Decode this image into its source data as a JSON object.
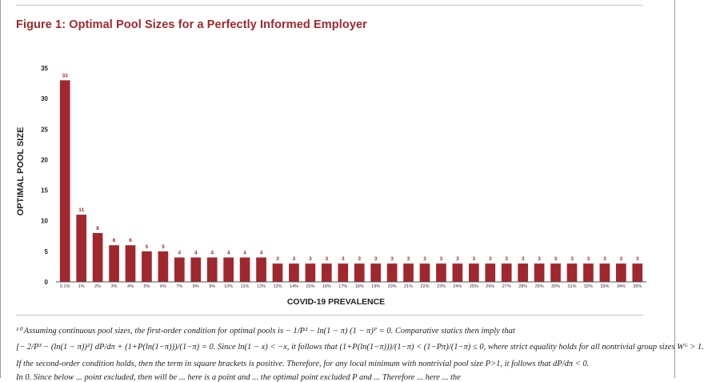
{
  "title": "Figure 1: Optimal Pool Sizes for a Perfectly Informed Employer",
  "colors": {
    "bar": "#a0282d",
    "title": "#a0282d",
    "text": "#222222"
  },
  "footnote": {
    "line1": "¹⁰ Assuming continuous pool sizes, the first-order condition for optimal pools is − 1/P² − ln(1 − π) (1 − π)ᴾ = 0. Comparative statics then imply that",
    "line2": "[− 2/P³ − (ln(1 − π))²] dP/dπ + (1+P(ln(1−π)))/(1−π) = 0. Since ln(1 − x) < −x, it follows that (1+P(ln(1−π)))/(1−π) < (1−Pπ)/(1−π) ≤ 0, where strict equality holds for all nontrivial group sizes Wᴳ > 1.",
    "line3": "If the second-order condition holds, then the term in square brackets is positive. Therefore, for any local minimum with nontrivial pool size P>1, it follows that dP/dπ < 0.",
    "line4": "In 0. Since below ... point excluded, then will be ... here is a point and ... the optimal point excluded P and ... Therefore ... here ... the"
  },
  "chart_data": {
    "type": "bar",
    "title": "Figure 1: Optimal Pool Sizes for a Perfectly Informed Employer",
    "xlabel": "COVID-19 PREVALENCE",
    "ylabel": "OPTIMAL POOL SIZE",
    "ylim": [
      0,
      35
    ],
    "yticks": [
      0,
      5,
      10,
      15,
      20,
      25,
      30,
      35
    ],
    "grid": false,
    "legend": "none",
    "categories": [
      "0.1%",
      "1%",
      "2%",
      "3%",
      "4%",
      "5%",
      "6%",
      "7%",
      "8%",
      "9%",
      "10%",
      "11%",
      "12%",
      "13%",
      "14%",
      "15%",
      "16%",
      "17%",
      "18%",
      "19%",
      "20%",
      "21%",
      "22%",
      "23%",
      "24%",
      "25%",
      "26%",
      "27%",
      "28%",
      "29%",
      "30%",
      "31%",
      "32%",
      "33%",
      "34%",
      "35%"
    ],
    "values": [
      33,
      11,
      8,
      6,
      6,
      5,
      5,
      4,
      4,
      4,
      4,
      4,
      4,
      3,
      3,
      3,
      3,
      3,
      3,
      3,
      3,
      3,
      3,
      3,
      3,
      3,
      3,
      3,
      3,
      3,
      3,
      3,
      3,
      3,
      3,
      3
    ]
  }
}
